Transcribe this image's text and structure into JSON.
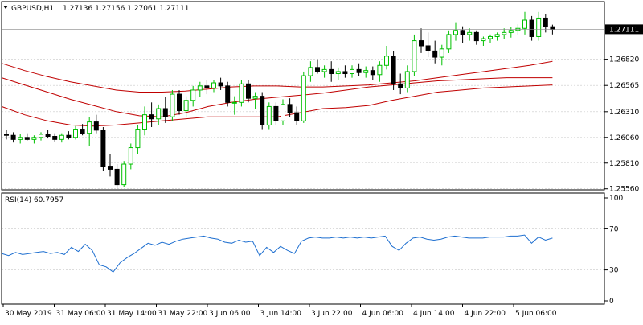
{
  "header": {
    "symbol": "GBPUSD,H1",
    "ohlc": "1.27136 1.27156 1.27061 1.27111"
  },
  "rsi_header": {
    "label": "RSI(14) 60.7957"
  },
  "current_price_label": "1.27111",
  "colors": {
    "bull": "#00c000",
    "bear": "#000000",
    "ma": "#c00000",
    "rsi": "#1e6fd0",
    "grid": "#c8c8c8",
    "frame": "#000000",
    "price_tag_bg": "#000000",
    "price_tag_fg": "#ffffff"
  },
  "chart_data": [
    {
      "type": "candlestick",
      "title": "GBPUSD,H1",
      "ylim": [
        1.2555,
        1.2738
      ],
      "price_ticks": [
        "1.27111",
        "1.26820",
        "1.26565",
        "1.26310",
        "1.26060",
        "1.25810",
        "1.25560"
      ],
      "price_tick_values": [
        1.27111,
        1.2682,
        1.26565,
        1.2631,
        1.2606,
        1.2581,
        1.2556
      ],
      "time_labels": [
        "30 May 2019",
        "31 May 06:00",
        "31 May 14:00",
        "31 May 22:00",
        "3 Jun 06:00",
        "3 Jun 14:00",
        "3 Jun 22:00",
        "4 Jun 06:00",
        "4 Jun 14:00",
        "4 Jun 22:00",
        "5 Jun 06:00"
      ],
      "series": [
        {
          "kind": "ohlc",
          "candles": [
            [
              1.2609,
              1.2613,
              1.2604,
              1.2608
            ],
            [
              1.2608,
              1.2611,
              1.2601,
              1.2604
            ],
            [
              1.2604,
              1.2609,
              1.26,
              1.2606
            ],
            [
              1.2606,
              1.261,
              1.2603,
              1.2604
            ],
            [
              1.2604,
              1.2608,
              1.26,
              1.2606
            ],
            [
              1.2606,
              1.2611,
              1.2603,
              1.2609
            ],
            [
              1.2609,
              1.2613,
              1.2605,
              1.2607
            ],
            [
              1.2607,
              1.261,
              1.2602,
              1.2604
            ],
            [
              1.2604,
              1.261,
              1.2601,
              1.2608
            ],
            [
              1.2608,
              1.2612,
              1.2604,
              1.2606
            ],
            [
              1.2606,
              1.2617,
              1.2604,
              1.2614
            ],
            [
              1.2614,
              1.2619,
              1.2608,
              1.261
            ],
            [
              1.261,
              1.2626,
              1.2598,
              1.2621
            ],
            [
              1.2621,
              1.2628,
              1.261,
              1.2613
            ],
            [
              1.2613,
              1.2616,
              1.2573,
              1.2578
            ],
            [
              1.2578,
              1.259,
              1.2568,
              1.2575
            ],
            [
              1.2575,
              1.258,
              1.2556,
              1.256
            ],
            [
              1.256,
              1.2583,
              1.2558,
              1.258
            ],
            [
              1.258,
              1.26,
              1.2575,
              1.2596
            ],
            [
              1.2596,
              1.2618,
              1.259,
              1.2614
            ],
            [
              1.2614,
              1.2636,
              1.2608,
              1.2628
            ],
            [
              1.2628,
              1.264,
              1.2616,
              1.2624
            ],
            [
              1.2624,
              1.2638,
              1.2618,
              1.2634
            ],
            [
              1.2634,
              1.2645,
              1.262,
              1.2626
            ],
            [
              1.2626,
              1.2652,
              1.2622,
              1.2648
            ],
            [
              1.2648,
              1.2652,
              1.2628,
              1.2632
            ],
            [
              1.2632,
              1.2646,
              1.2626,
              1.2642
            ],
            [
              1.2642,
              1.2656,
              1.2636,
              1.2652
            ],
            [
              1.2652,
              1.266,
              1.2645,
              1.2656
            ],
            [
              1.2656,
              1.2662,
              1.2648,
              1.2654
            ],
            [
              1.2654,
              1.2662,
              1.265,
              1.2659
            ],
            [
              1.2659,
              1.2664,
              1.2652,
              1.2656
            ],
            [
              1.2656,
              1.266,
              1.2636,
              1.264
            ],
            [
              1.264,
              1.2646,
              1.2628,
              1.264
            ],
            [
              1.264,
              1.2662,
              1.2636,
              1.2658
            ],
            [
              1.2658,
              1.2662,
              1.264,
              1.2644
            ],
            [
              1.2644,
              1.265,
              1.2634,
              1.2646
            ],
            [
              1.2646,
              1.265,
              1.2614,
              1.2618
            ],
            [
              1.2618,
              1.264,
              1.2614,
              1.2636
            ],
            [
              1.2636,
              1.264,
              1.2618,
              1.2622
            ],
            [
              1.2622,
              1.2643,
              1.2618,
              1.2638
            ],
            [
              1.2638,
              1.2644,
              1.2626,
              1.263
            ],
            [
              1.263,
              1.2636,
              1.2618,
              1.2622
            ],
            [
              1.2622,
              1.267,
              1.262,
              1.2666
            ],
            [
              1.2666,
              1.268,
              1.266,
              1.2674
            ],
            [
              1.2674,
              1.2682,
              1.2668,
              1.267
            ],
            [
              1.267,
              1.2676,
              1.2664,
              1.2672
            ],
            [
              1.2672,
              1.268,
              1.266,
              1.2668
            ],
            [
              1.2668,
              1.2674,
              1.2662,
              1.267
            ],
            [
              1.267,
              1.2676,
              1.2664,
              1.2668
            ],
            [
              1.2668,
              1.2676,
              1.2664,
              1.2672
            ],
            [
              1.2672,
              1.2678,
              1.2666,
              1.2669
            ],
            [
              1.2669,
              1.2675,
              1.2664,
              1.2671
            ],
            [
              1.2671,
              1.2675,
              1.2662,
              1.2667
            ],
            [
              1.2667,
              1.268,
              1.266,
              1.2676
            ],
            [
              1.2676,
              1.2695,
              1.2672,
              1.2685
            ],
            [
              1.2685,
              1.269,
              1.2652,
              1.2658
            ],
            [
              1.2658,
              1.2668,
              1.2648,
              1.2654
            ],
            [
              1.2654,
              1.2676,
              1.265,
              1.267
            ],
            [
              1.267,
              1.2706,
              1.2666,
              1.27
            ],
            [
              1.27,
              1.2712,
              1.2688,
              1.2695
            ],
            [
              1.2695,
              1.2708,
              1.2684,
              1.269
            ],
            [
              1.269,
              1.27,
              1.2678,
              1.2684
            ],
            [
              1.2684,
              1.2696,
              1.2676,
              1.2692
            ],
            [
              1.2692,
              1.271,
              1.2688,
              1.2706
            ],
            [
              1.2706,
              1.2718,
              1.27,
              1.271
            ],
            [
              1.271,
              1.2714,
              1.2698,
              1.2706
            ],
            [
              1.2706,
              1.2712,
              1.27,
              1.2708
            ],
            [
              1.2708,
              1.271,
              1.2696,
              1.27
            ],
            [
              1.27,
              1.2704,
              1.2695,
              1.2702
            ],
            [
              1.2702,
              1.2706,
              1.2698,
              1.2704
            ],
            [
              1.2704,
              1.2708,
              1.27,
              1.2706
            ],
            [
              1.2706,
              1.2712,
              1.2702,
              1.2708
            ],
            [
              1.2708,
              1.2713,
              1.2703,
              1.271
            ],
            [
              1.271,
              1.2716,
              1.2706,
              1.2712
            ],
            [
              1.2712,
              1.2728,
              1.2706,
              1.272
            ],
            [
              1.272,
              1.2724,
              1.27,
              1.2704
            ],
            [
              1.2704,
              1.2728,
              1.27,
              1.2722
            ],
            [
              1.2722,
              1.2726,
              1.2708,
              1.2714
            ],
            [
              1.27136,
              1.27156,
              1.27061,
              1.27111
            ]
          ]
        },
        {
          "kind": "ma",
          "values": [
            1.2678,
            1.2671,
            1.2665,
            1.266,
            1.2656,
            1.2652,
            1.265,
            1.265,
            1.2651,
            1.2653,
            1.2655,
            1.2656,
            1.2656,
            1.2655,
            1.2655,
            1.2656,
            1.2657,
            1.2659,
            1.2661,
            1.2664,
            1.2667,
            1.267,
            1.2673,
            1.2676,
            1.268
          ]
        },
        {
          "kind": "ma",
          "values": [
            1.2664,
            1.2657,
            1.265,
            1.2643,
            1.2637,
            1.2631,
            1.2627,
            1.2626,
            1.263,
            1.2636,
            1.264,
            1.2643,
            1.2645,
            1.2647,
            1.2649,
            1.2652,
            1.2655,
            1.2657,
            1.2659,
            1.2661,
            1.2662,
            1.2663,
            1.2664,
            1.2664,
            1.2664
          ]
        },
        {
          "kind": "ma",
          "values": [
            1.2636,
            1.2628,
            1.2622,
            1.2618,
            1.2617,
            1.2618,
            1.262,
            1.2622,
            1.2624,
            1.2626,
            1.2626,
            1.2626,
            1.2626,
            1.263,
            1.2634,
            1.2635,
            1.2637,
            1.2642,
            1.2646,
            1.265,
            1.2652,
            1.2654,
            1.2655,
            1.2656,
            1.2657
          ]
        }
      ]
    },
    {
      "type": "line",
      "title": "RSI(14) 60.7957",
      "ylim": [
        0,
        100
      ],
      "y_ticks": [
        "100",
        "70",
        "30",
        "0"
      ],
      "y_tick_values": [
        100,
        70,
        30,
        0
      ],
      "series": [
        {
          "values": [
            46,
            44,
            47,
            45,
            46,
            47,
            48,
            46,
            47,
            45,
            52,
            48,
            55,
            49,
            35,
            33,
            28,
            37,
            42,
            46,
            51,
            56,
            54,
            57,
            55,
            58,
            60,
            61,
            62,
            63,
            61,
            60,
            57,
            56,
            59,
            57,
            58,
            44,
            52,
            47,
            53,
            49,
            46,
            58,
            61,
            62,
            61,
            61,
            62,
            61,
            62,
            61,
            62,
            61,
            62,
            63,
            53,
            49,
            56,
            61,
            62,
            60,
            59,
            60,
            62,
            63,
            62,
            61,
            61,
            61,
            62,
            62,
            62,
            63,
            63,
            64,
            56,
            62,
            59,
            61
          ]
        }
      ]
    }
  ]
}
